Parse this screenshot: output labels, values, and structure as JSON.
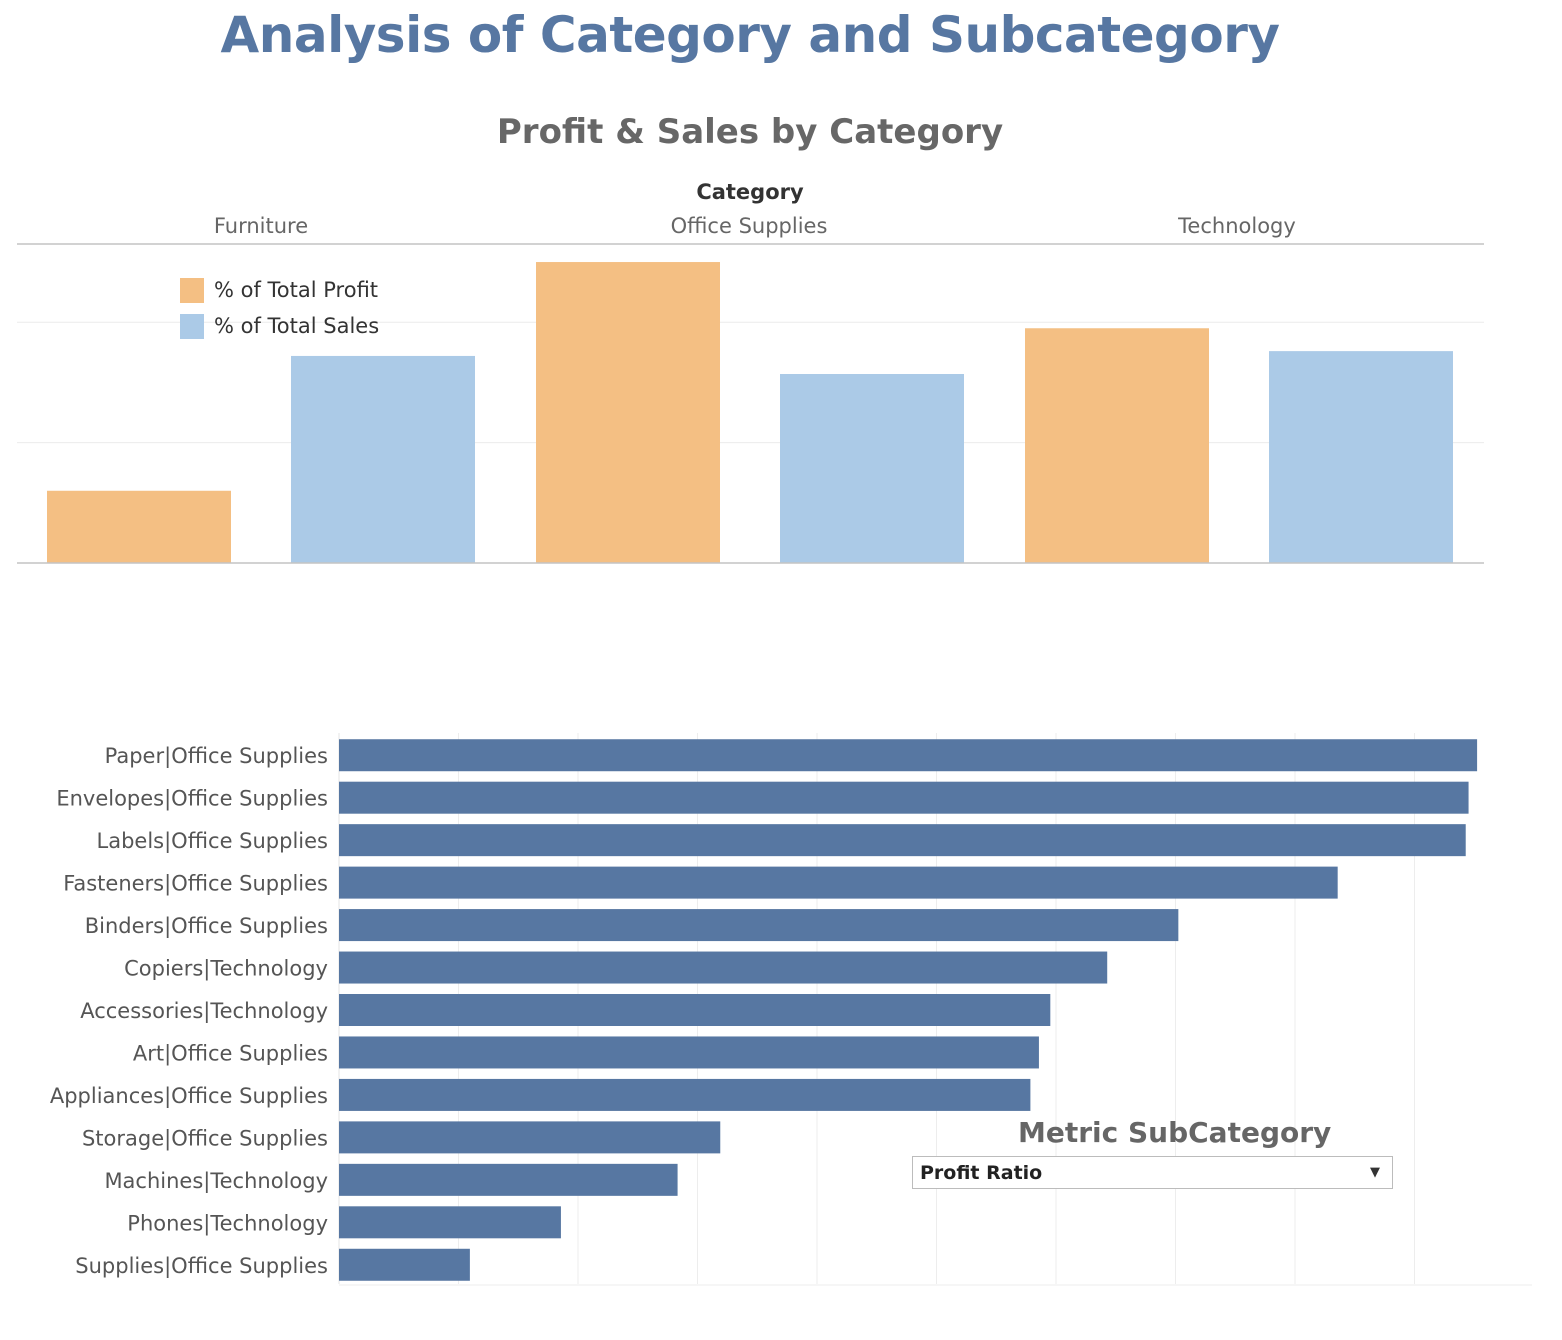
{
  "title": "Analysis of Category and Subcategory",
  "chart_data": [
    {
      "type": "bar",
      "title": "Profit & Sales by Category",
      "column_header": "Category",
      "categories": [
        "Furniture",
        "Office Supplies",
        "Technology"
      ],
      "series": [
        {
          "name": "% of Total Profit",
          "color": "#f4bf83",
          "values": [
            0.06,
            0.25,
            0.195
          ]
        },
        {
          "name": "% of Total Sales",
          "color": "#abcae7",
          "values": [
            0.172,
            0.157,
            0.176
          ]
        }
      ],
      "ylim": [
        0,
        0.26
      ],
      "gridlines": [
        0.1,
        0.2
      ],
      "legend_position": "top-left"
    },
    {
      "type": "bar",
      "orientation": "horizontal",
      "color": "#5777a2",
      "categories": [
        "Paper|Office Supplies",
        "Envelopes|Office Supplies",
        "Labels|Office Supplies",
        "Fasteners|Office Supplies",
        "Binders|Office Supplies",
        "Copiers|Technology",
        "Accessories|Technology",
        "Art|Office Supplies",
        "Appliances|Office Supplies",
        "Storage|Office Supplies",
        "Machines|Technology",
        "Phones|Technology",
        "Supplies|Office Supplies"
      ],
      "values": [
        0.4,
        0.397,
        0.396,
        0.351,
        0.295,
        0.27,
        0.25,
        0.246,
        0.243,
        0.134,
        0.119,
        0.078,
        0.046
      ],
      "xlim": [
        0,
        0.42
      ],
      "gridlines": [
        0.042,
        0.084,
        0.126,
        0.168,
        0.21,
        0.252,
        0.294,
        0.336,
        0.378
      ]
    }
  ],
  "parameter": {
    "title": "Metric SubCategory",
    "selected": "Profit Ratio",
    "caret_icon": "triangle-down-icon"
  }
}
